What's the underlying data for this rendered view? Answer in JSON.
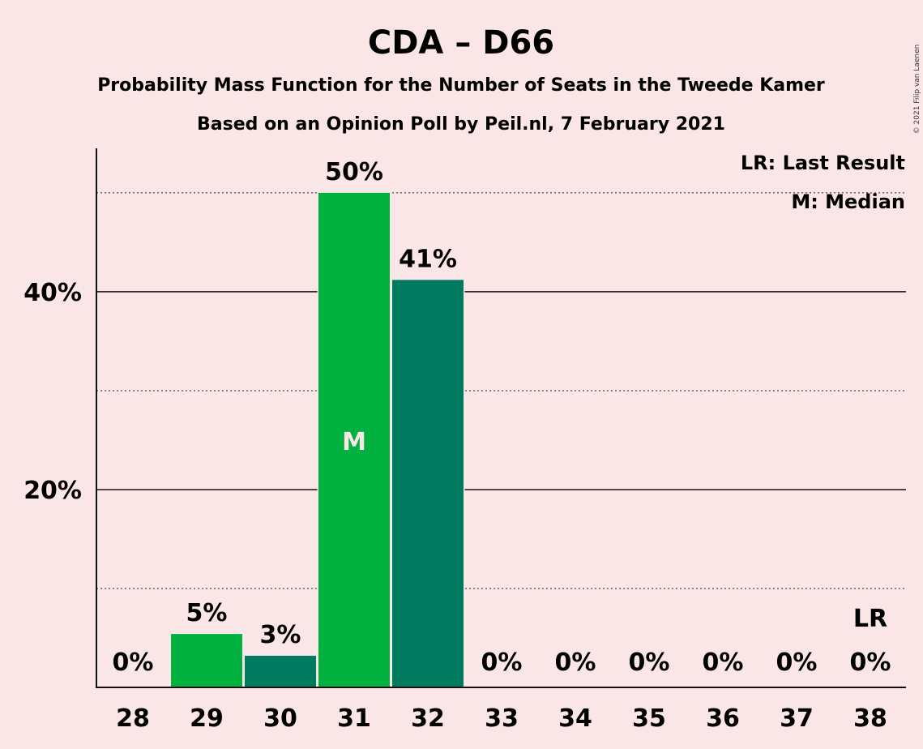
{
  "chart_data": {
    "type": "bar",
    "title": "CDA – D66",
    "subtitle_lines": [
      "Probability Mass Function for the Number of Seats in the Tweede Kamer",
      "Based on an Opinion Poll by Peil.nl, 7 February 2021"
    ],
    "copyright": "© 2021 Filip van Laenen",
    "categories": [
      28,
      29,
      30,
      31,
      32,
      33,
      34,
      35,
      36,
      37,
      38
    ],
    "values": [
      0,
      5.4,
      3.2,
      50,
      41.2,
      0,
      0,
      0,
      0,
      0,
      0
    ],
    "data_labels": [
      "0%",
      "5%",
      "3%",
      "50%",
      "41%",
      "0%",
      "0%",
      "0%",
      "0%",
      "0%",
      "0%"
    ],
    "ylim": [
      0,
      54.5
    ],
    "yticks": [
      {
        "value": 20,
        "label": "20%"
      },
      {
        "value": 40,
        "label": "40%"
      }
    ],
    "dotted_gridlines": [
      10,
      30,
      50
    ],
    "median_seat": 31,
    "median_marker": "M",
    "last_result_seat": 38,
    "last_result_marker": "LR",
    "legend": [
      "LR: Last Result",
      "M: Median"
    ],
    "legend_position": "top-right",
    "colors": {
      "background": "#fbe6e7",
      "bar_light": "#00b140",
      "bar_dark": "#007b5f",
      "text": "#111111"
    }
  }
}
